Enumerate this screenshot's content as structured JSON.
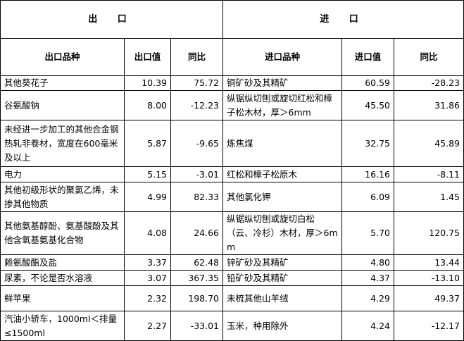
{
  "header": {
    "export_title": "出 口",
    "import_title": "进 口"
  },
  "columns": {
    "export_product": "出口品种",
    "export_value": "出口值",
    "export_yoy": "同比",
    "import_product": "进口品种",
    "import_value": "进口值",
    "import_yoy": "同比"
  },
  "rows": [
    {
      "export_product": "其他葵花子",
      "export_value": "10.39",
      "export_yoy": "75.72",
      "import_product": "铜矿砂及其精矿",
      "import_value": "60.59",
      "import_yoy": "-28.23"
    },
    {
      "export_product": "谷氨酸钠",
      "export_value": "8.00",
      "export_yoy": "-12.23",
      "import_product": "纵锯纵切刨或旋切红松和樟子松木材，厚＞6mm",
      "import_value": "45.50",
      "import_yoy": "31.86"
    },
    {
      "export_product": "未经进一步加工的其他合金钢热轧非卷材，宽度在600毫米及以上",
      "export_value": "5.87",
      "export_yoy": "-9.65",
      "import_product": "炼焦煤",
      "import_value": "32.75",
      "import_yoy": "45.89"
    },
    {
      "export_product": "电力",
      "export_value": "5.15",
      "export_yoy": "-3.01",
      "import_product": "红松和樟子松原木",
      "import_value": "16.16",
      "import_yoy": "-8.11"
    },
    {
      "export_product": "其他初级形状的聚氯乙烯，未掺其他物质",
      "export_value": "4.99",
      "export_yoy": "82.33",
      "import_product": "其他氯化钾",
      "import_value": "6.09",
      "import_yoy": "1.45"
    },
    {
      "export_product": "其他氨基醇酚、氨基酸酚及其他含氧基氨基化合物",
      "export_value": "4.08",
      "export_yoy": "24.66",
      "import_product": "纵锯纵切刨或旋切白松（云、冷杉）木材，厚＞6mm",
      "import_value": "5.70",
      "import_yoy": "120.75"
    },
    {
      "export_product": "赖氨酸酯及盐",
      "export_value": "3.37",
      "export_yoy": "62.48",
      "import_product": "锌矿砂及其精矿",
      "import_value": "4.80",
      "import_yoy": "13.44"
    },
    {
      "export_product": "尿素，不论是否水溶液",
      "export_value": "3.07",
      "export_yoy": "367.35",
      "import_product": "铅矿砂及其精矿",
      "import_value": "4.37",
      "import_yoy": "-13.10"
    },
    {
      "export_product": "鲜苹果",
      "export_value": "2.32",
      "export_yoy": "198.70",
      "import_product": "未梳其他山羊绒",
      "import_value": "4.29",
      "import_yoy": "49.37"
    },
    {
      "export_product": "汽油小轿车，1000ml＜排量≤1500ml",
      "export_value": "2.27",
      "export_yoy": "-33.01",
      "import_product": "玉米，种用除外",
      "import_value": "4.24",
      "import_yoy": "-12.17"
    }
  ]
}
